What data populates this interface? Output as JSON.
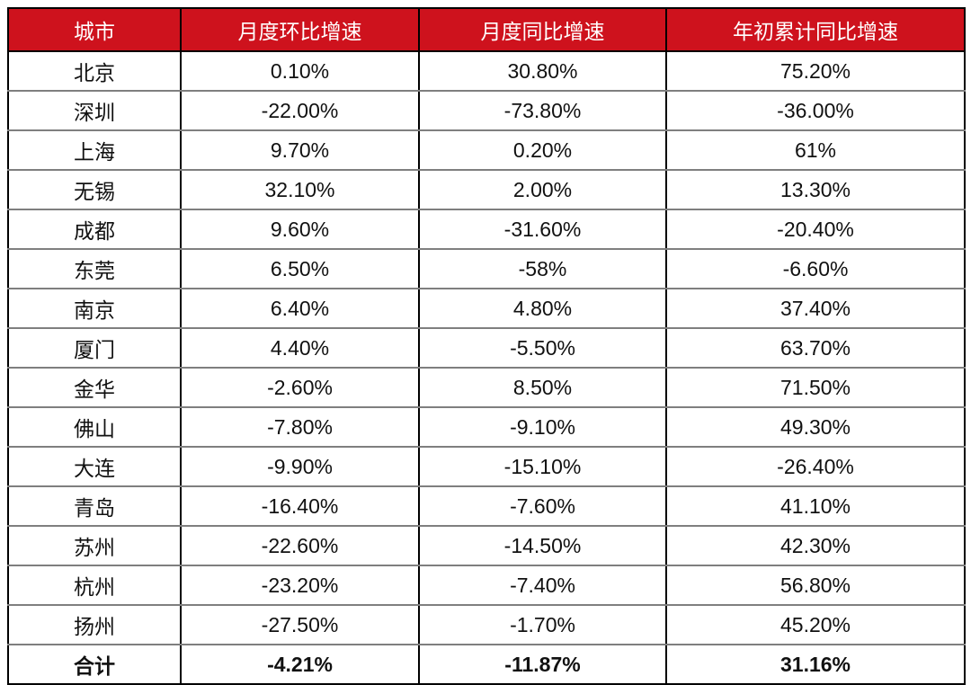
{
  "chart_data": {
    "type": "table",
    "columns": [
      "城市",
      "月度环比增速",
      "月度同比增速",
      "年初累计同比增速"
    ],
    "rows": [
      [
        "北京",
        "0.10%",
        "30.80%",
        "75.20%"
      ],
      [
        "深圳",
        "-22.00%",
        "-73.80%",
        "-36.00%"
      ],
      [
        "上海",
        "9.70%",
        "0.20%",
        "61%"
      ],
      [
        "无锡",
        "32.10%",
        "2.00%",
        "13.30%"
      ],
      [
        "成都",
        "9.60%",
        "-31.60%",
        "-20.40%"
      ],
      [
        "东莞",
        "6.50%",
        "-58%",
        "-6.60%"
      ],
      [
        "南京",
        "6.40%",
        "4.80%",
        "37.40%"
      ],
      [
        "厦门",
        "4.40%",
        "-5.50%",
        "63.70%"
      ],
      [
        "金华",
        "-2.60%",
        "8.50%",
        "71.50%"
      ],
      [
        "佛山",
        "-7.80%",
        "-9.10%",
        "49.30%"
      ],
      [
        "大连",
        "-9.90%",
        "-15.10%",
        "-26.40%"
      ],
      [
        "青岛",
        "-16.40%",
        "-7.60%",
        "41.10%"
      ],
      [
        "苏州",
        "-22.60%",
        "-14.50%",
        "42.30%"
      ],
      [
        "杭州",
        "-23.20%",
        "-7.40%",
        "56.80%"
      ],
      [
        "扬州",
        "-27.50%",
        "-1.70%",
        "45.20%"
      ]
    ],
    "total_row": [
      "合计",
      "-4.21%",
      "-11.87%",
      "31.16%"
    ]
  },
  "colors": {
    "header_bg": "#CE121D",
    "header_text": "#FFFFFF",
    "body_text": "#111111",
    "grid_horizontal": "#7F7F7F",
    "grid_vertical": "#000000"
  }
}
